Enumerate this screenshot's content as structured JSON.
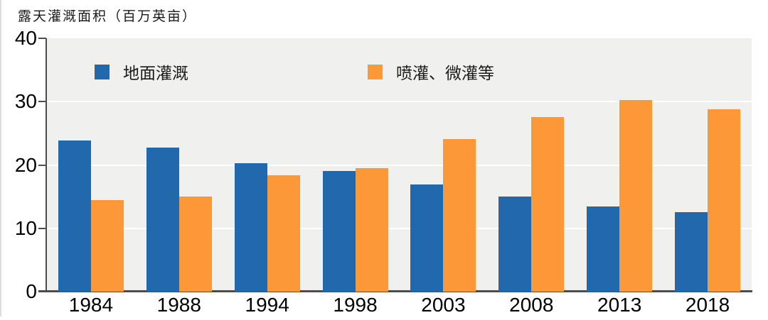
{
  "title": "露天灌溉面积（百万英亩）",
  "colors": {
    "series_blue": "#2268ac",
    "series_orange": "#fd9838",
    "plot_background": "#f0f0ef",
    "gridline": "#ffffff",
    "axis": "#4c4c4c"
  },
  "legend": {
    "items": [
      {
        "label": "地面灌溉",
        "color": "#2268ac"
      },
      {
        "label": "喷灌、微灌等",
        "color": "#fd9838"
      }
    ]
  },
  "chart_data": {
    "type": "bar",
    "title": "露天灌溉面积（百万英亩）",
    "categories": [
      "1984",
      "1988",
      "1994",
      "1998",
      "2003",
      "2008",
      "2013",
      "2018"
    ],
    "series": [
      {
        "name": "地面灌溉",
        "color": "#2268ac",
        "values": [
          23.9,
          22.7,
          20.3,
          19.0,
          16.9,
          15.0,
          13.5,
          12.6
        ]
      },
      {
        "name": "喷灌、微灌等",
        "color": "#fd9838",
        "values": [
          14.5,
          15.0,
          18.4,
          19.5,
          24.1,
          27.6,
          30.3,
          28.8
        ]
      }
    ],
    "xlabel": "",
    "ylabel": "露天灌溉面积（百万英亩）",
    "ylim": [
      0,
      40
    ],
    "yticks": [
      0,
      10,
      20,
      30,
      40
    ],
    "gridlines": [
      10,
      20,
      30
    ],
    "grid": true,
    "legend_position": "top-inside"
  }
}
